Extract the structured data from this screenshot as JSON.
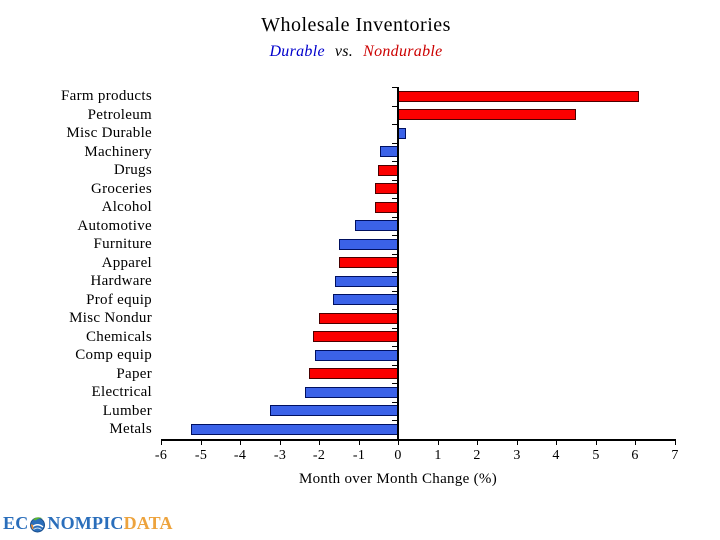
{
  "page": {
    "title": "Wholesale Inventories",
    "subtitle": {
      "durable": "Durable",
      "vs": "vs.",
      "nondurable": "Nondurable"
    }
  },
  "colors": {
    "durable_fill": "#3B62E8",
    "durable_border": "#001060",
    "nondurable_fill": "#FB0000",
    "nondurable_border": "#4A0000",
    "subtitle_durable": "#0000CC",
    "subtitle_nondurable": "#CC0000",
    "axis": "#000000",
    "logo_blue": "#2A6EBB",
    "logo_orange": "#EDA33D"
  },
  "chart_data": {
    "type": "bar",
    "orientation": "horizontal",
    "title": "Wholesale Inventories",
    "subtitle": "Durable vs. Nondurable",
    "xlabel": "Month over Month Change (%)",
    "xlim": [
      -6,
      7
    ],
    "xticks": [
      -6,
      -5,
      -4,
      -3,
      -2,
      -1,
      0,
      1,
      2,
      3,
      4,
      5,
      6,
      7
    ],
    "grid": false,
    "legend_note": "Durable bars are blue, Nondurable bars are red (shown via subtitle colors)",
    "categories": [
      "Farm products",
      "Petroleum",
      "Misc Durable",
      "Machinery",
      "Drugs",
      "Groceries",
      "Alcohol",
      "Automotive",
      "Furniture",
      "Apparel",
      "Hardware",
      "Prof equip",
      "Misc Nondur",
      "Chemicals",
      "Comp equip",
      "Paper",
      "Electrical",
      "Lumber",
      "Metals"
    ],
    "values": [
      6.1,
      4.5,
      0.2,
      -0.45,
      -0.5,
      -0.6,
      -0.6,
      -1.1,
      -1.5,
      -1.5,
      -1.6,
      -1.65,
      -2.0,
      -2.15,
      -2.1,
      -2.25,
      -2.35,
      -3.25,
      -5.25
    ],
    "groups": [
      "nondurable",
      "nondurable",
      "durable",
      "durable",
      "nondurable",
      "nondurable",
      "nondurable",
      "durable",
      "durable",
      "nondurable",
      "durable",
      "durable",
      "nondurable",
      "nondurable",
      "durable",
      "nondurable",
      "durable",
      "durable",
      "durable"
    ]
  },
  "logo": {
    "ec": "EC",
    "nompic": "NOMPIC",
    "data": "DATA"
  }
}
